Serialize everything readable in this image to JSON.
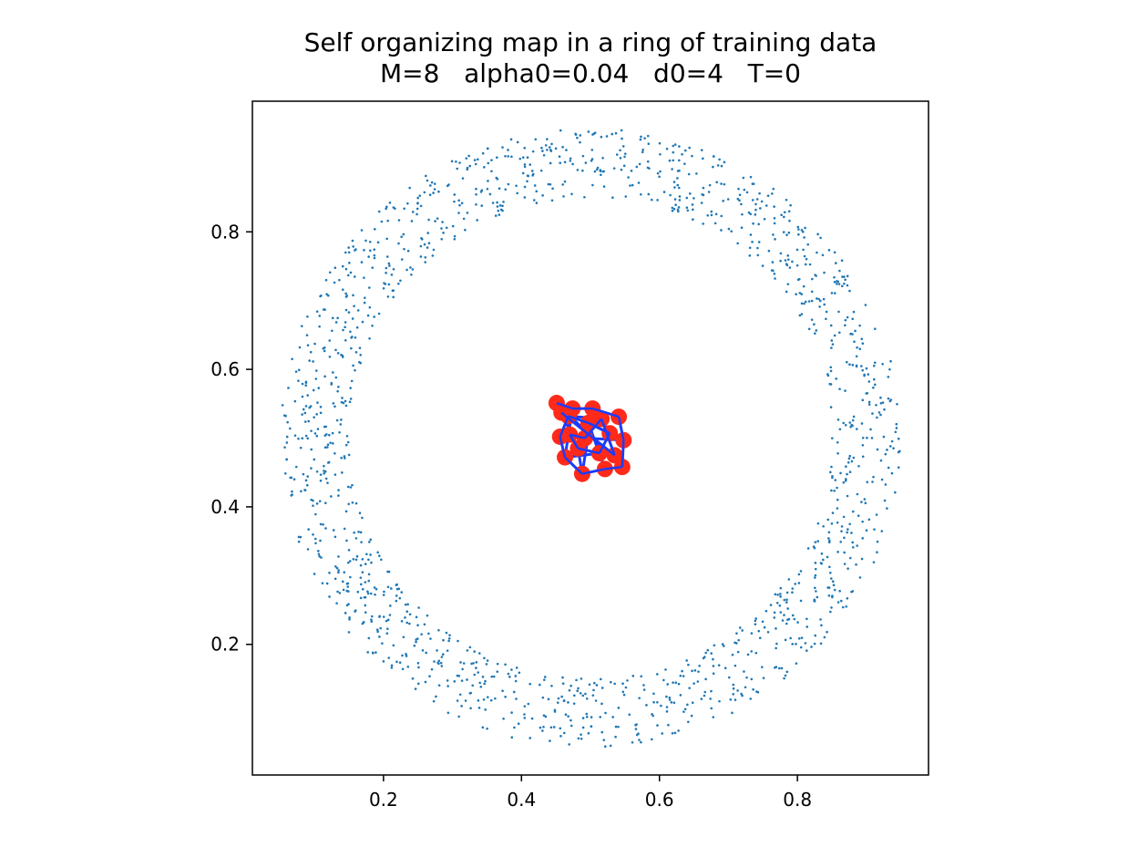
{
  "chart_data": {
    "type": "scatter",
    "title": "Self organizing map in a ring of training data",
    "subtitle": "M=8   alpha0=0.04   d0=4   T=0",
    "xlabel": "",
    "ylabel": "",
    "xlim": [
      0.01,
      0.99
    ],
    "ylim": [
      0.01,
      0.99
    ],
    "xticks": [
      0.2,
      0.4,
      0.6,
      0.8
    ],
    "yticks": [
      0.2,
      0.4,
      0.6,
      0.8
    ],
    "xtick_labels": [
      "0.2",
      "0.4",
      "0.6",
      "0.8"
    ],
    "ytick_labels": [
      "0.2",
      "0.4",
      "0.6",
      "0.8"
    ],
    "grid": false,
    "legend": "none",
    "ring": {
      "center": [
        0.5,
        0.5
      ],
      "inner_radius": 0.35,
      "outer_radius": 0.45,
      "n_points": 1500,
      "color": "#1f77b4"
    },
    "som_nodes": {
      "color": "#ff2a1a",
      "line_color": "#1a3cff",
      "points": [
        [
          0.451,
          0.551
        ],
        [
          0.474,
          0.543
        ],
        [
          0.503,
          0.543
        ],
        [
          0.541,
          0.531
        ],
        [
          0.548,
          0.497
        ],
        [
          0.546,
          0.458
        ],
        [
          0.521,
          0.455
        ],
        [
          0.488,
          0.448
        ],
        [
          0.463,
          0.472
        ],
        [
          0.456,
          0.502
        ],
        [
          0.468,
          0.532
        ],
        [
          0.497,
          0.522
        ],
        [
          0.528,
          0.507
        ],
        [
          0.513,
          0.478
        ],
        [
          0.482,
          0.485
        ],
        [
          0.47,
          0.505
        ],
        [
          0.492,
          0.5
        ],
        [
          0.516,
          0.528
        ],
        [
          0.535,
          0.475
        ],
        [
          0.458,
          0.537
        ]
      ]
    }
  },
  "colors": {
    "ring_points": "#1f77b4",
    "som_nodes": "#ff2a1a",
    "som_edges": "#1a3cff",
    "axes": "#000000",
    "background": "#ffffff"
  }
}
